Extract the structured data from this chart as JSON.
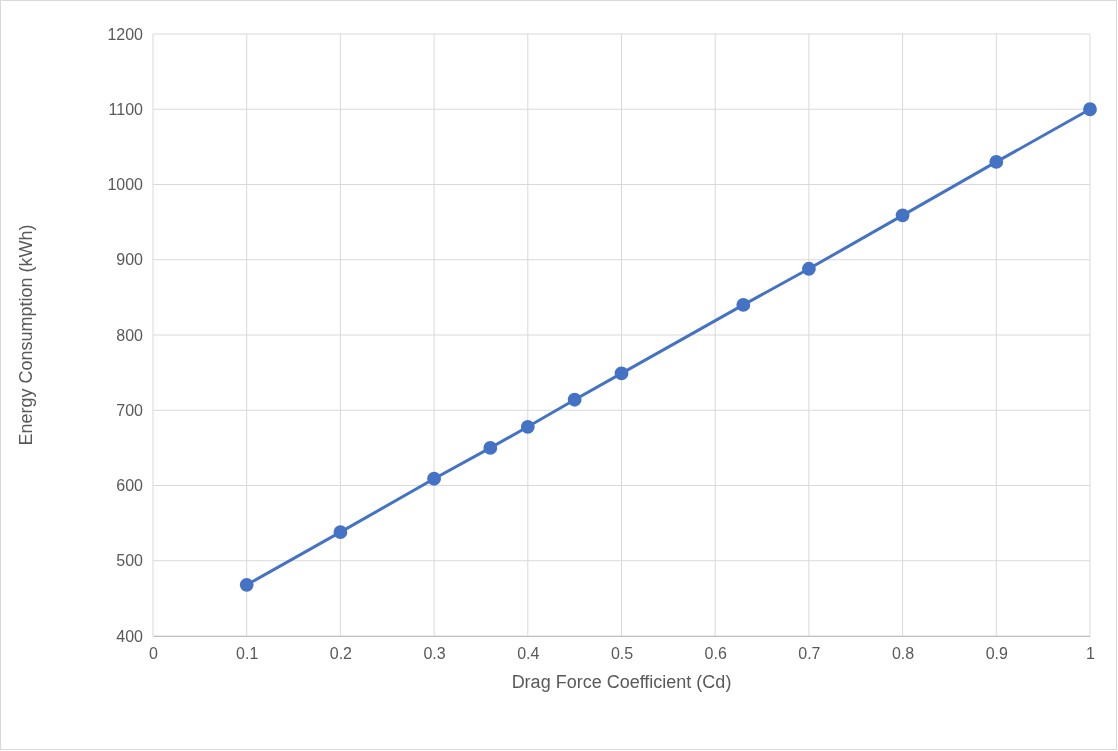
{
  "chart_data": {
    "type": "line",
    "xlabel": "Drag Force Coefficient (Cd)",
    "ylabel": "Energy Consumption (kWh)",
    "x": [
      0.1,
      0.2,
      0.3,
      0.36,
      0.4,
      0.45,
      0.5,
      0.63,
      0.7,
      0.8,
      0.9,
      1
    ],
    "series": [
      {
        "color": "#4472c4",
        "values": [
          468,
          538,
          609,
          650,
          678,
          714,
          749,
          840,
          888,
          959,
          1030,
          1100
        ]
      }
    ],
    "xlim": [
      0,
      1
    ],
    "xticks": [
      0,
      0.1,
      0.2,
      0.3,
      0.4,
      0.5,
      0.6,
      0.7,
      0.8,
      0.9,
      1
    ],
    "ylim": [
      400,
      1200
    ],
    "yticks": [
      400,
      500,
      600,
      700,
      800,
      900,
      1000,
      1100,
      1200
    ],
    "grid": true,
    "marker": "circle",
    "line_style": "solid"
  }
}
